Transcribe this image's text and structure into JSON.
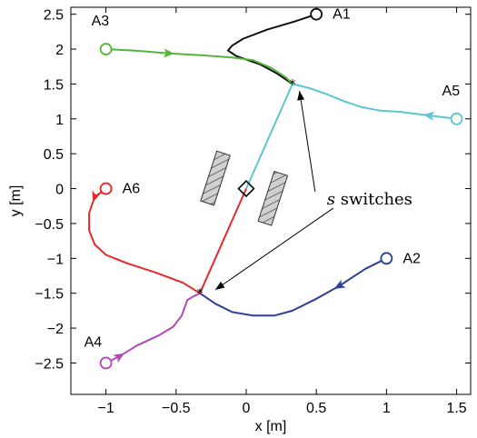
{
  "chart_data": {
    "type": "line",
    "xlabel": "x [m]",
    "ylabel": "y [m]",
    "xlim": [
      -1.25,
      1.6
    ],
    "ylim": [
      -2.95,
      2.6
    ],
    "x_ticks": [
      -1,
      -0.5,
      0,
      0.5,
      1,
      1.5
    ],
    "x_tick_labels": [
      "−1",
      "−0.5",
      "0",
      "0.5",
      "1",
      "1.5"
    ],
    "y_ticks": [
      2.5,
      2,
      1.5,
      1,
      0.5,
      0,
      -0.5,
      -1,
      -1.5,
      -2,
      -2.5
    ],
    "y_tick_labels": [
      "2.5",
      "2",
      "1.5",
      "1",
      "0.5",
      "0",
      "−0.5",
      "−1",
      "−1.5",
      "−2",
      "−2.5"
    ],
    "grid": false,
    "annotation": {
      "text_italic": "s",
      "text": " switches",
      "position_data": [
        0.88,
        -0.15
      ],
      "targets": [
        [
          0.38,
          1.4
        ],
        [
          -0.22,
          -1.45
        ]
      ]
    },
    "switch_points": [
      [
        0.33,
        1.5
      ],
      [
        -0.33,
        -1.5
      ]
    ],
    "formation_square": [
      0,
      0
    ],
    "obstacles": [
      {
        "center": [
          -0.22,
          0.15
        ],
        "width": 0.1,
        "height": 0.75,
        "angle_deg": 18
      },
      {
        "center": [
          0.19,
          -0.14
        ],
        "width": 0.1,
        "height": 0.75,
        "angle_deg": 18
      }
    ],
    "series": [
      {
        "name": "A1",
        "color": "#111111",
        "start": [
          0.5,
          2.5
        ],
        "points": [
          [
            0.5,
            2.5
          ],
          [
            0.35,
            2.4
          ],
          [
            0.15,
            2.28
          ],
          [
            -0.02,
            2.15
          ],
          [
            -0.1,
            2.05
          ],
          [
            -0.13,
            1.98
          ],
          [
            -0.07,
            1.9
          ],
          [
            0.1,
            1.78
          ],
          [
            0.22,
            1.65
          ],
          [
            0.33,
            1.5
          ]
        ]
      },
      {
        "name": "A3",
        "color": "#55b43a",
        "start": [
          -1.0,
          2.0
        ],
        "points": [
          [
            -1.0,
            2.0
          ],
          [
            -0.8,
            1.98
          ],
          [
            -0.55,
            1.94
          ],
          [
            -0.3,
            1.91
          ],
          [
            -0.1,
            1.88
          ],
          [
            0.05,
            1.84
          ],
          [
            0.18,
            1.73
          ],
          [
            0.28,
            1.6
          ],
          [
            0.33,
            1.5
          ]
        ],
        "arrow_at": [
          -0.55,
          1.94
        ]
      },
      {
        "name": "A5",
        "color": "#5bc6d1",
        "start": [
          1.5,
          1.0
        ],
        "points": [
          [
            1.5,
            1.0
          ],
          [
            1.3,
            1.05
          ],
          [
            1.1,
            1.1
          ],
          [
            0.95,
            1.12
          ],
          [
            0.82,
            1.17
          ],
          [
            0.7,
            1.25
          ],
          [
            0.58,
            1.35
          ],
          [
            0.45,
            1.44
          ],
          [
            0.33,
            1.5
          ]
        ],
        "arrow_at": [
          1.22,
          1.07
        ]
      },
      {
        "name": "A6",
        "color": "#e8282a",
        "start": [
          -1.0,
          0.0
        ],
        "points": [
          [
            -1.0,
            0.0
          ],
          [
            -1.08,
            -0.12
          ],
          [
            -1.12,
            -0.35
          ],
          [
            -1.12,
            -0.6
          ],
          [
            -1.08,
            -0.8
          ],
          [
            -1.0,
            -0.95
          ],
          [
            -0.85,
            -1.07
          ],
          [
            -0.65,
            -1.2
          ],
          [
            -0.45,
            -1.35
          ],
          [
            -0.33,
            -1.5
          ]
        ],
        "arrow_at": [
          -0.98,
          -0.97
        ]
      },
      {
        "name": "A2",
        "color": "#2b3f95",
        "start": [
          1.0,
          -1.0
        ],
        "points": [
          [
            1.0,
            -1.0
          ],
          [
            0.85,
            -1.15
          ],
          [
            0.66,
            -1.4
          ],
          [
            0.5,
            -1.58
          ],
          [
            0.33,
            -1.75
          ],
          [
            0.2,
            -1.82
          ],
          [
            0.05,
            -1.82
          ],
          [
            -0.1,
            -1.77
          ],
          [
            -0.22,
            -1.65
          ],
          [
            -0.33,
            -1.5
          ]
        ],
        "arrow_at": [
          0.66,
          -1.4
        ]
      },
      {
        "name": "A4",
        "color": "#b049b1",
        "start": [
          -1.0,
          -2.5
        ],
        "points": [
          [
            -1.0,
            -2.5
          ],
          [
            -0.9,
            -2.4
          ],
          [
            -0.78,
            -2.25
          ],
          [
            -0.62,
            -2.1
          ],
          [
            -0.52,
            -1.98
          ],
          [
            -0.46,
            -1.82
          ],
          [
            -0.42,
            -1.6
          ],
          [
            -0.38,
            -1.55
          ],
          [
            -0.33,
            -1.5
          ]
        ],
        "arrow_at": [
          -0.65,
          -2.08
        ]
      },
      {
        "name": "formation-to-upper",
        "color": "#5bc6d1",
        "start": null,
        "points": [
          [
            0.0,
            0.0
          ],
          [
            0.33,
            1.5
          ]
        ]
      },
      {
        "name": "formation-to-lower",
        "color": "#e8282a",
        "start": null,
        "points": [
          [
            0.0,
            0.0
          ],
          [
            -0.33,
            -1.5
          ]
        ]
      }
    ],
    "agent_labels": [
      {
        "text": "A1",
        "at": [
          0.5,
          2.5
        ],
        "dx": 18,
        "dy": 5
      },
      {
        "text": "A3",
        "at": [
          -1.0,
          2.0
        ],
        "dx": -16,
        "dy": -26
      },
      {
        "text": "A5",
        "at": [
          1.5,
          1.0
        ],
        "dx": -16,
        "dy": -26
      },
      {
        "text": "A6",
        "at": [
          -1.0,
          0.0
        ],
        "dx": 18,
        "dy": 5
      },
      {
        "text": "A2",
        "at": [
          1.0,
          -1.0
        ],
        "dx": 18,
        "dy": 5
      },
      {
        "text": "A4",
        "at": [
          -1.0,
          -2.5
        ],
        "dx": -24,
        "dy": -18
      }
    ]
  }
}
